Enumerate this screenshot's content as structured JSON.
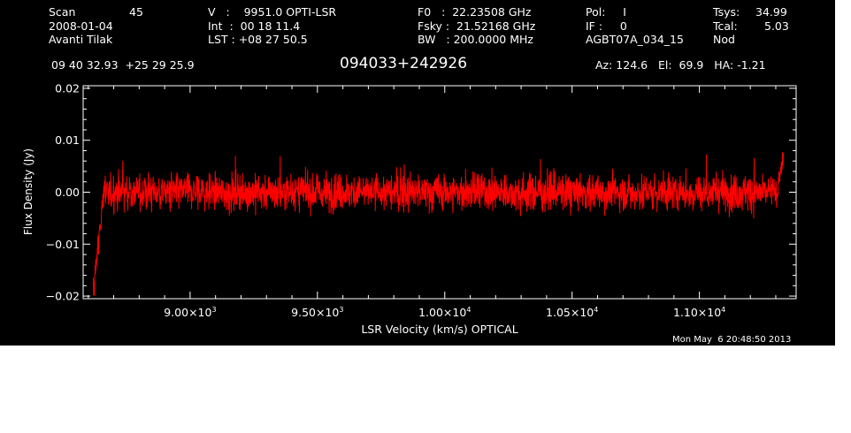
{
  "header": {
    "scan_label": "Scan",
    "scan_value": "45",
    "date": "2008-01-04",
    "observer": "Avanti Tilak",
    "v_line": "V   :    9951.0 OPTI-LSR",
    "int_line": "Int  :  00 18 11.4",
    "lst_line": "LST : +08 27 50.5",
    "f0_line": "F0   :  22.23508 GHz",
    "fsky_line": "Fsky :  21.52168 GHz",
    "bw_line": "BW   : 200.0000 MHz",
    "pol_line": "Pol:     I",
    "if_line": "IF :     0",
    "project": "AGBT07A_034_15",
    "tsys_label": "Tsys:",
    "tsys_value": "34.99",
    "tcal_label": "Tcal:",
    "tcal_value": "5.03",
    "mode": "Nod",
    "coords": "09 40 32.93  +25 29 25.9",
    "source": "094033+242926",
    "az_el_ha": "Az: 124.6   El:  69.9   HA: -1.21"
  },
  "timestamp": "Mon May  6 20:48:50 2013",
  "colors": {
    "background": "#000000",
    "axes": "#ffffff",
    "trace": "#ff0000"
  },
  "chart_data": {
    "type": "line",
    "xlabel": "LSR Velocity (km/s) OPTICAL",
    "ylabel": "Flux Density (Jy)",
    "xlim": [
      8580,
      11380
    ],
    "ylim": [
      -0.0205,
      0.0205
    ],
    "x_ticks": [
      {
        "value": 9000,
        "mant": "9.00×10",
        "exp": "3"
      },
      {
        "value": 9500,
        "mant": "9.50×10",
        "exp": "3"
      },
      {
        "value": 10000,
        "mant": "1.00×10",
        "exp": "4"
      },
      {
        "value": 10500,
        "mant": "1.05×10",
        "exp": "4"
      },
      {
        "value": 11000,
        "mant": "1.10×10",
        "exp": "4"
      }
    ],
    "y_ticks": [
      {
        "value": 0.02,
        "label": "0.02"
      },
      {
        "value": 0.01,
        "label": "0.01"
      },
      {
        "value": 0.0,
        "label": "0.00"
      },
      {
        "value": -0.01,
        "label": "−0.01"
      },
      {
        "value": -0.02,
        "label": "−0.02"
      }
    ],
    "series": [
      {
        "x_start": 8620,
        "x_end": 11330,
        "noise_rms": 0.0025,
        "mean": 0.0,
        "edge_low_start": -0.019,
        "edge_high_end": 0.011
      }
    ]
  }
}
